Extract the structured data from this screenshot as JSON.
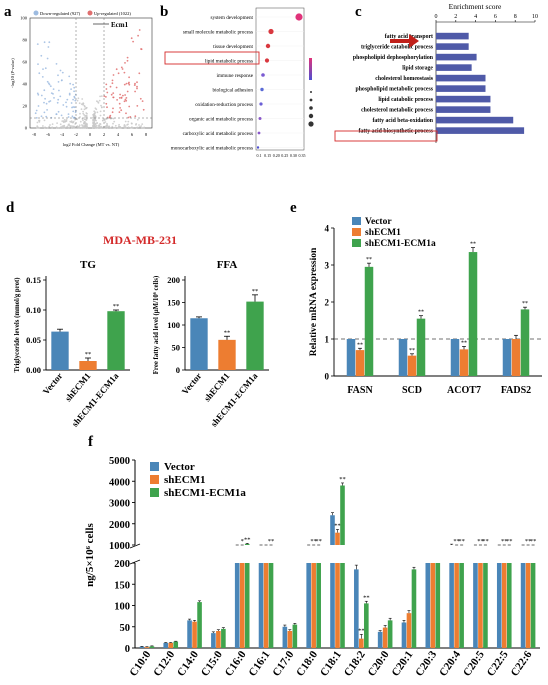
{
  "colors": {
    "vector": "#4a86b8",
    "shecm1": "#ed7d31",
    "shecm1_ecm1a": "#3fa34d",
    "volcano_up": "#e06f6f",
    "volcano_down": "#9dbbe0",
    "kegg_bar": "#4f5aa8",
    "title_red": "#d42a2a",
    "arrow_red": "#c0201a"
  },
  "panel_labels": {
    "a": "a",
    "b": "b",
    "c": "c",
    "d": "d",
    "e": "e",
    "f": "f"
  },
  "volcano": {
    "legend_down": "Down-regulated (927)",
    "legend_up": "Up-regulated (1022)",
    "xlabel": "log2 Fold Change (MT vs. NT)",
    "ylabel": "-log10 (P-value)",
    "x_ticks": [
      "-8",
      "-6",
      "-4",
      "-2",
      "0",
      "2",
      "4",
      "6",
      "8"
    ],
    "y_ticks": [
      "0",
      "20",
      "40",
      "60",
      "80",
      "100"
    ],
    "annotation": "Ecm1"
  },
  "go_dot": {
    "terms": [
      "system development",
      "small molecule metabolic process",
      "tissue development",
      "lipid metabolic process",
      "immune response",
      "biological adhesion",
      "oxidation-reduction process",
      "organic acid metabolic process",
      "carboxylic acid metabolic process",
      "monocarboxylic acid metabolic process"
    ],
    "x_ticks": [
      "0.1",
      "0.15",
      "0.20",
      "0.25",
      "0.30",
      "0.35"
    ],
    "highlight": "lipid metabolic process"
  },
  "enrichment": {
    "title": "Enrichment score",
    "ticks": [
      "0",
      "2",
      "4",
      "6",
      "8",
      "10"
    ],
    "xlim": [
      0,
      10
    ],
    "terms": [
      "fatty acid transport",
      "triglyceride catabolic process",
      "phospholipid dephosphorylation",
      "lipid storage",
      "cholesterol homeostasis",
      "phospholipid metabolic process",
      "lipid catabolic process",
      "cholesterol metabolic process",
      "fatty acid beta-oxidation",
      "fatty acid biosynthetic process"
    ],
    "values": [
      3.3,
      3.3,
      4.1,
      3.6,
      5.0,
      5.0,
      5.5,
      5.5,
      7.8,
      8.9
    ],
    "highlight": "fatty acid biosynthetic process"
  },
  "panel_d": {
    "cell_line": "MDA-MB-231",
    "tg": {
      "title": "TG",
      "ylabel": "Triglyceride levels (mmol/g prot)",
      "ticks": [
        "0.00",
        "0.05",
        "0.10",
        "0.15"
      ],
      "ylim": [
        0,
        0.15
      ],
      "categories": [
        "Vector",
        "shECM1",
        "shECM1-ECM1a"
      ],
      "values": [
        0.064,
        0.015,
        0.098
      ],
      "errors": [
        0.004,
        0.005,
        0.002
      ],
      "sig": [
        "",
        "**",
        "**"
      ]
    },
    "ffa": {
      "title": "FFA",
      "ylabel": "Free fatty acid level (μM/10⁶ cells)",
      "ticks": [
        "0",
        "50",
        "100",
        "150",
        "200"
      ],
      "ylim": [
        0,
        200
      ],
      "categories": [
        "Vector",
        "shECM1",
        "shECM1-ECM1a"
      ],
      "values": [
        115,
        67,
        152
      ],
      "errors": [
        3,
        8,
        15
      ],
      "sig": [
        "",
        "**",
        "**"
      ]
    }
  },
  "panel_e": {
    "ylabel": "Relative mRNA expression",
    "ticks": [
      "0",
      "1",
      "2",
      "3",
      "4"
    ],
    "ylim": [
      0,
      4
    ],
    "categories": [
      "FASN",
      "SCD",
      "ACOT7",
      "FADS2"
    ],
    "legend": [
      "Vector",
      "shECM1",
      "shECM1-ECM1a"
    ],
    "series": [
      {
        "name": "Vector",
        "values": [
          1.0,
          1.0,
          1.0,
          1.0
        ],
        "errors": [
          0,
          0,
          0,
          0
        ],
        "sig": [
          "",
          "",
          "",
          ""
        ]
      },
      {
        "name": "shECM1",
        "values": [
          0.7,
          0.55,
          0.72,
          1.0
        ],
        "errors": [
          0.05,
          0.05,
          0.08,
          0.1
        ],
        "sig": [
          "**",
          "**",
          "**",
          ""
        ]
      },
      {
        "name": "shECM1-ECM1a",
        "values": [
          2.95,
          1.55,
          3.35,
          1.8
        ],
        "errors": [
          0.1,
          0.08,
          0.12,
          0.06
        ],
        "sig": [
          "**",
          "**",
          "**",
          "**"
        ]
      }
    ]
  },
  "chart_data": {
    "type": "bar",
    "title": "",
    "ylabel": "ng/5×10⁶ cells",
    "y_ticks_upper": [
      "1000",
      "2000",
      "3000",
      "4000",
      "5000"
    ],
    "y_ticks_lower": [
      "0",
      "50",
      "100",
      "150",
      "200"
    ],
    "ylim_lower": [
      0,
      200
    ],
    "ylim_upper": [
      1000,
      5000
    ],
    "categories": [
      "C10:0",
      "C12:0",
      "C14:0",
      "C15:0",
      "C16:0",
      "C16:1",
      "C17:0",
      "C18:0",
      "C18:1",
      "C18:2",
      "C20:0",
      "C20:1",
      "C20:3",
      "C20:4",
      "C20:5",
      "C22:5",
      "C22:6"
    ],
    "series": [
      {
        "name": "Vector",
        "values": [
          3,
          12,
          65,
          35,
          700,
          420,
          50,
          700,
          2400,
          185,
          38,
          60,
          300,
          1000,
          660,
          650,
          780
        ],
        "errors": [
          1,
          1,
          3,
          3,
          20,
          20,
          4,
          30,
          120,
          10,
          3,
          5,
          0,
          40,
          20,
          20,
          30
        ]
      },
      {
        "name": "shECM1",
        "values": [
          2,
          12,
          62,
          40,
          700,
          520,
          40,
          620,
          1580,
          22,
          48,
          82,
          330,
          700,
          520,
          420,
          560
        ],
        "errors": [
          1,
          1,
          3,
          3,
          20,
          20,
          3,
          30,
          150,
          10,
          5,
          6,
          0,
          30,
          20,
          20,
          30
        ]
      },
      {
        "name": "shECM1-ECM1a",
        "values": [
          4,
          15,
          108,
          45,
          1050,
          800,
          55,
          880,
          3800,
          105,
          65,
          185,
          350,
          720,
          620,
          470,
          700
        ],
        "errors": [
          1,
          1,
          3,
          3,
          30,
          30,
          3,
          40,
          120,
          5,
          5,
          5,
          0,
          30,
          20,
          20,
          30
        ]
      }
    ],
    "sig_shecm1": [
      "",
      "",
      "",
      "",
      "*",
      "",
      "",
      "**",
      "**",
      "**",
      "",
      "",
      "",
      "**",
      "**",
      "**",
      "**"
    ],
    "sig_ecm1a": [
      "",
      "",
      "",
      "",
      "**",
      "**",
      "",
      "**",
      "**",
      "**",
      "",
      "",
      "",
      "**",
      "**",
      "**",
      "**"
    ]
  }
}
